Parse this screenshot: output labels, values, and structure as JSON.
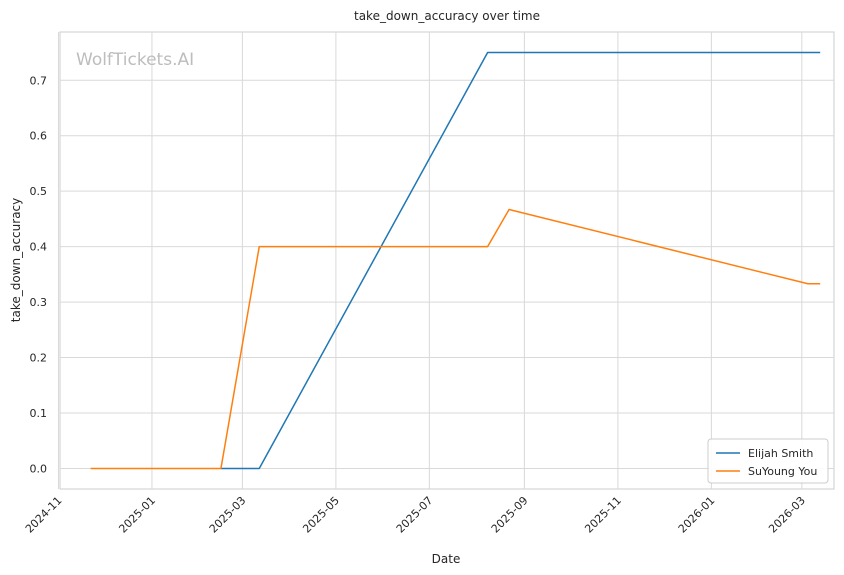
{
  "chart_data": {
    "type": "line",
    "title": "take_down_accuracy over time",
    "xlabel": "Date",
    "ylabel": "take_down_accuracy",
    "watermark": "WolfTickets.AI",
    "xlim": [
      "2024-11-02",
      "2026-03-22"
    ],
    "ylim": [
      -0.037,
      0.787
    ],
    "x_ticks": [
      "2024-11",
      "2025-01",
      "2025-03",
      "2025-05",
      "2025-07",
      "2025-09",
      "2025-11",
      "2026-01",
      "2026-03"
    ],
    "y_ticks": [
      "0.0",
      "0.1",
      "0.2",
      "0.3",
      "0.4",
      "0.5",
      "0.6",
      "0.7"
    ],
    "grid": true,
    "legend_position": "bottom-right",
    "colors": {
      "Elijah Smith": "#1f77b4",
      "SuYoung You": "#ff7f0e"
    },
    "series": [
      {
        "name": "Elijah Smith",
        "x": [
          "2025-02-15",
          "2025-03-12",
          "2025-08-08",
          "2026-03-13"
        ],
        "y": [
          0.0,
          0.0,
          0.75,
          0.75
        ]
      },
      {
        "name": "SuYoung You",
        "x": [
          "2024-11-22",
          "2025-02-15",
          "2025-03-12",
          "2025-08-08",
          "2025-08-22",
          "2026-03-05",
          "2026-03-13"
        ],
        "y": [
          0.0,
          0.0,
          0.4,
          0.4,
          0.467,
          0.333,
          0.333
        ]
      }
    ]
  }
}
